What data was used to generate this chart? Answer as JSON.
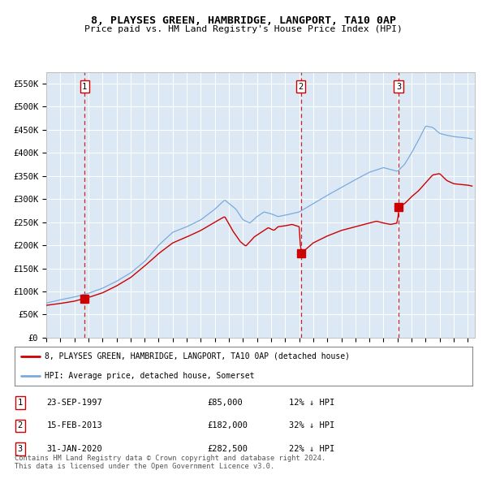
{
  "title": "8, PLAYSES GREEN, HAMBRIDGE, LANGPORT, TA10 0AP",
  "subtitle": "Price paid vs. HM Land Registry's House Price Index (HPI)",
  "background_color": "#dce9f5",
  "fig_bg_color": "#ffffff",
  "hpi_color": "#7aaadd",
  "price_color": "#cc0000",
  "ylim": [
    0,
    575000
  ],
  "yticks": [
    0,
    50000,
    100000,
    150000,
    200000,
    250000,
    300000,
    350000,
    400000,
    450000,
    500000,
    550000
  ],
  "ytick_labels": [
    "£0",
    "£50K",
    "£100K",
    "£150K",
    "£200K",
    "£250K",
    "£300K",
    "£350K",
    "£400K",
    "£450K",
    "£500K",
    "£550K"
  ],
  "sales": [
    {
      "year": 1997.73,
      "price": 85000,
      "label": "1"
    },
    {
      "year": 2013.12,
      "price": 182000,
      "label": "2"
    },
    {
      "year": 2020.08,
      "price": 282500,
      "label": "3"
    }
  ],
  "legend_entries": [
    "8, PLAYSES GREEN, HAMBRIDGE, LANGPORT, TA10 0AP (detached house)",
    "HPI: Average price, detached house, Somerset"
  ],
  "table_entries": [
    {
      "num": "1",
      "date": "23-SEP-1997",
      "price": "£85,000",
      "hpi": "12% ↓ HPI"
    },
    {
      "num": "2",
      "date": "15-FEB-2013",
      "price": "£182,000",
      "hpi": "32% ↓ HPI"
    },
    {
      "num": "3",
      "date": "31-JAN-2020",
      "price": "£282,500",
      "hpi": "22% ↓ HPI"
    }
  ],
  "footnote": "Contains HM Land Registry data © Crown copyright and database right 2024.\nThis data is licensed under the Open Government Licence v3.0.",
  "xmin": 1995.0,
  "xmax": 2025.5
}
